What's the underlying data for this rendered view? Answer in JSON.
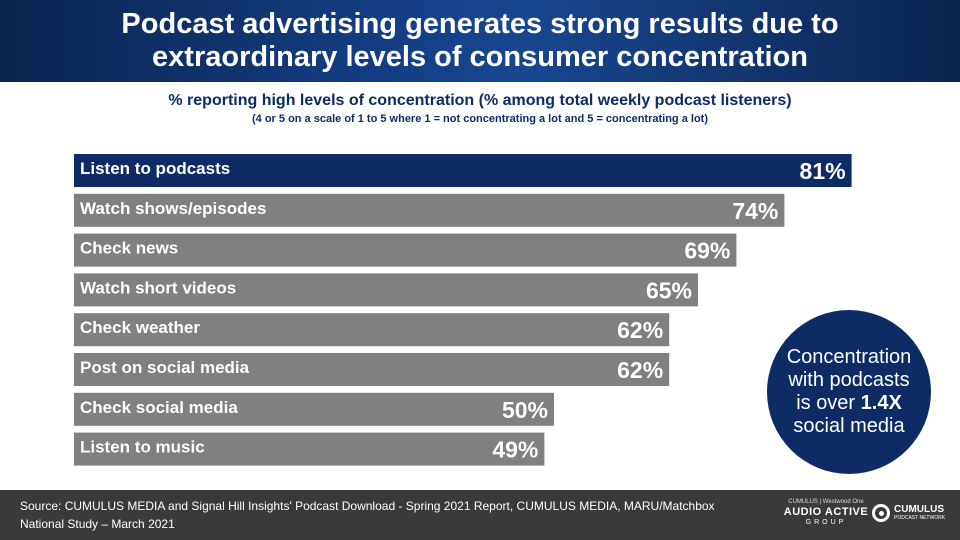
{
  "header": {
    "title": "Podcast advertising generates strong results due to\nextraordinary levels of consumer concentration"
  },
  "chart_data": {
    "type": "bar",
    "orientation": "horizontal",
    "title": "% reporting high levels of concentration (% among total weekly podcast listeners)",
    "subtitle": "(4 or 5 on a scale of 1 to 5 where 1 = not concentrating a lot and 5 = concentrating a lot)",
    "categories": [
      "Listen to podcasts",
      "Watch shows/episodes",
      "Check news",
      "Watch short videos",
      "Check weather",
      "Post on social media",
      "Check social media",
      "Listen to music"
    ],
    "values": [
      81,
      74,
      69,
      65,
      62,
      62,
      50,
      49
    ],
    "value_labels": [
      "81%",
      "74%",
      "69%",
      "65%",
      "62%",
      "62%",
      "50%",
      "49%"
    ],
    "xlim": [
      0,
      100
    ],
    "grid": false,
    "colors": {
      "highlight": "#0d2c66",
      "default": "#808080"
    }
  },
  "callout": {
    "line1": "Concentration",
    "line2": "with podcasts",
    "line3_prefix": "is over ",
    "line3_bold": "1.4X",
    "line4": "social media"
  },
  "footer": {
    "source": "Source: CUMULUS MEDIA and Signal Hill Insights' Podcast Download - Spring 2021 Report, CUMULUS MEDIA, MARU/Matchbox National Study – March 2021",
    "logo_audio_active": {
      "top": "CUMULUS | Westwood One",
      "main": "AUDIO ACTIVE",
      "sub": "GROUP"
    },
    "logo_cpn": {
      "name": "CUMULUS",
      "sub": "PODCAST NETWORK"
    }
  }
}
